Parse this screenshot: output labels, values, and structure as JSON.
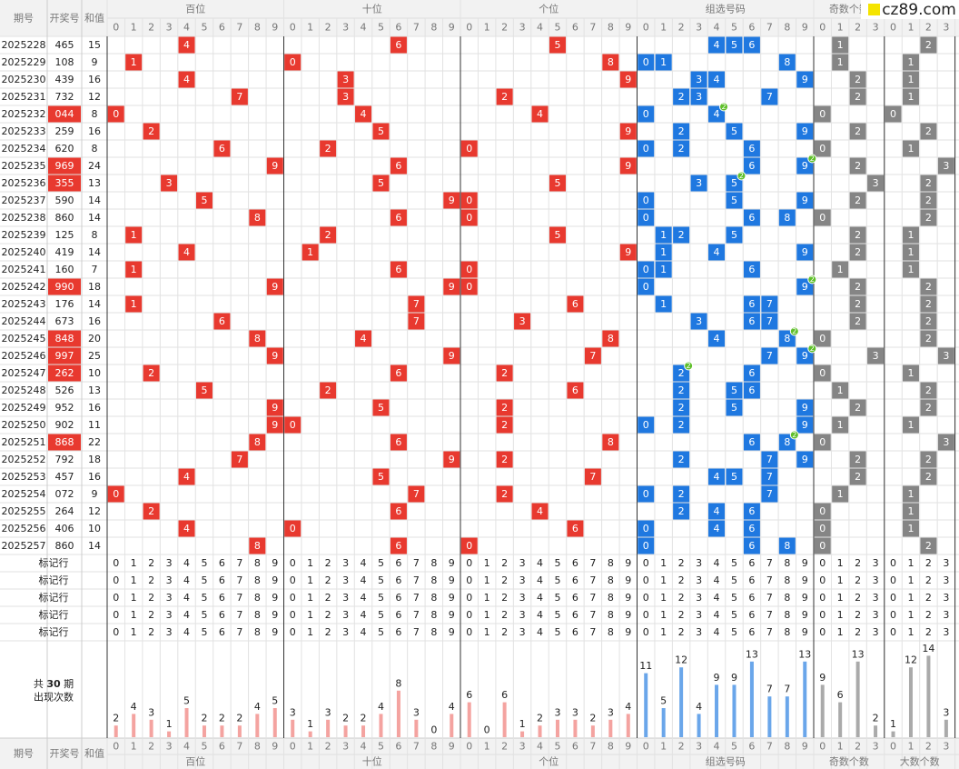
{
  "logo": "cz89.com",
  "headers": {
    "issue": "期号",
    "number": "开奖号",
    "sum": "和值"
  },
  "groups": [
    {
      "name": "百位",
      "color": "#e8392f",
      "bar_color": "#f4a3a0",
      "columns": [
        0,
        1,
        2,
        3,
        4,
        5,
        6,
        7,
        8,
        9
      ],
      "counts": [
        2,
        4,
        3,
        1,
        5,
        2,
        2,
        2,
        4,
        5
      ]
    },
    {
      "name": "十位",
      "color": "#e8392f",
      "bar_color": "#f4a3a0",
      "columns": [
        0,
        1,
        2,
        3,
        4,
        5,
        6,
        7,
        8,
        9
      ],
      "counts": [
        3,
        1,
        3,
        2,
        2,
        4,
        8,
        3,
        0,
        4
      ]
    },
    {
      "name": "个位",
      "color": "#e8392f",
      "bar_color": "#f4a3a0",
      "columns": [
        0,
        1,
        2,
        3,
        4,
        5,
        6,
        7,
        8,
        9
      ],
      "counts": [
        6,
        0,
        6,
        1,
        2,
        3,
        3,
        2,
        3,
        4
      ]
    },
    {
      "name": "组选号码",
      "color": "#1f78e0",
      "bar_color": "#6aa6ea",
      "columns": [
        0,
        1,
        2,
        3,
        4,
        5,
        6,
        7,
        8,
        9
      ],
      "counts": [
        11,
        5,
        12,
        4,
        9,
        9,
        13,
        7,
        7,
        13
      ]
    },
    {
      "name": "奇数个数",
      "color": "#858585",
      "bar_color": "#aaaaaa",
      "columns": [
        0,
        1,
        2,
        3
      ],
      "counts": [
        9,
        6,
        13,
        2
      ]
    },
    {
      "name": "大数个数",
      "color": "#858585",
      "bar_color": "#aaaaaa",
      "columns": [
        0,
        1,
        2,
        3
      ],
      "counts": [
        1,
        12,
        14,
        3
      ]
    }
  ],
  "draws": [
    {
      "issue": "2025228",
      "number": "465",
      "sum": 15,
      "digits": [
        4,
        6,
        5
      ],
      "odd": 1,
      "big": 2
    },
    {
      "issue": "2025229",
      "number": "108",
      "sum": 9,
      "digits": [
        1,
        0,
        8
      ],
      "odd": 1,
      "big": 1
    },
    {
      "issue": "2025230",
      "number": "439",
      "sum": 16,
      "digits": [
        4,
        3,
        9
      ],
      "odd": 2,
      "big": 1
    },
    {
      "issue": "2025231",
      "number": "732",
      "sum": 12,
      "digits": [
        7,
        3,
        2
      ],
      "odd": 2,
      "big": 1
    },
    {
      "issue": "2025232",
      "number": "044",
      "sum": 8,
      "digits": [
        0,
        4,
        4
      ],
      "odd": 0,
      "big": 0,
      "double": 2
    },
    {
      "issue": "2025233",
      "number": "259",
      "sum": 16,
      "digits": [
        2,
        5,
        9
      ],
      "odd": 2,
      "big": 2
    },
    {
      "issue": "2025234",
      "number": "620",
      "sum": 8,
      "digits": [
        6,
        2,
        0
      ],
      "odd": 0,
      "big": 1
    },
    {
      "issue": "2025235",
      "number": "969",
      "sum": 24,
      "digits": [
        9,
        6,
        9
      ],
      "odd": 2,
      "big": 3,
      "double": 2
    },
    {
      "issue": "2025236",
      "number": "355",
      "sum": 13,
      "digits": [
        3,
        5,
        5
      ],
      "odd": 3,
      "big": 2,
      "double": 2
    },
    {
      "issue": "2025237",
      "number": "590",
      "sum": 14,
      "digits": [
        5,
        9,
        0
      ],
      "odd": 2,
      "big": 2
    },
    {
      "issue": "2025238",
      "number": "860",
      "sum": 14,
      "digits": [
        8,
        6,
        0
      ],
      "odd": 0,
      "big": 2
    },
    {
      "issue": "2025239",
      "number": "125",
      "sum": 8,
      "digits": [
        1,
        2,
        5
      ],
      "odd": 2,
      "big": 1
    },
    {
      "issue": "2025240",
      "number": "419",
      "sum": 14,
      "digits": [
        4,
        1,
        9
      ],
      "odd": 2,
      "big": 1
    },
    {
      "issue": "2025241",
      "number": "160",
      "sum": 7,
      "digits": [
        1,
        6,
        0
      ],
      "odd": 1,
      "big": 1
    },
    {
      "issue": "2025242",
      "number": "990",
      "sum": 18,
      "digits": [
        9,
        9,
        0
      ],
      "odd": 2,
      "big": 2,
      "double": 2
    },
    {
      "issue": "2025243",
      "number": "176",
      "sum": 14,
      "digits": [
        1,
        7,
        6
      ],
      "odd": 2,
      "big": 2
    },
    {
      "issue": "2025244",
      "number": "673",
      "sum": 16,
      "digits": [
        6,
        7,
        3
      ],
      "odd": 2,
      "big": 2
    },
    {
      "issue": "2025245",
      "number": "848",
      "sum": 20,
      "digits": [
        8,
        4,
        8
      ],
      "odd": 0,
      "big": 2,
      "double": 2
    },
    {
      "issue": "2025246",
      "number": "997",
      "sum": 25,
      "digits": [
        9,
        9,
        7
      ],
      "odd": 3,
      "big": 3,
      "double": 2
    },
    {
      "issue": "2025247",
      "number": "262",
      "sum": 10,
      "digits": [
        2,
        6,
        2
      ],
      "odd": 0,
      "big": 1,
      "double": 2
    },
    {
      "issue": "2025248",
      "number": "526",
      "sum": 13,
      "digits": [
        5,
        2,
        6
      ],
      "odd": 1,
      "big": 2
    },
    {
      "issue": "2025249",
      "number": "952",
      "sum": 16,
      "digits": [
        9,
        5,
        2
      ],
      "odd": 2,
      "big": 2
    },
    {
      "issue": "2025250",
      "number": "902",
      "sum": 11,
      "digits": [
        9,
        0,
        2
      ],
      "odd": 1,
      "big": 1
    },
    {
      "issue": "2025251",
      "number": "868",
      "sum": 22,
      "digits": [
        8,
        6,
        8
      ],
      "odd": 0,
      "big": 3,
      "double": 2
    },
    {
      "issue": "2025252",
      "number": "792",
      "sum": 18,
      "digits": [
        7,
        9,
        2
      ],
      "odd": 2,
      "big": 2
    },
    {
      "issue": "2025253",
      "number": "457",
      "sum": 16,
      "digits": [
        4,
        5,
        7
      ],
      "odd": 2,
      "big": 2
    },
    {
      "issue": "2025254",
      "number": "072",
      "sum": 9,
      "digits": [
        0,
        7,
        2
      ],
      "odd": 1,
      "big": 1
    },
    {
      "issue": "2025255",
      "number": "264",
      "sum": 12,
      "digits": [
        2,
        6,
        4
      ],
      "odd": 0,
      "big": 1
    },
    {
      "issue": "2025256",
      "number": "406",
      "sum": 10,
      "digits": [
        4,
        0,
        6
      ],
      "odd": 0,
      "big": 1
    },
    {
      "issue": "2025257",
      "number": "860",
      "sum": 14,
      "digits": [
        8,
        6,
        0
      ],
      "odd": 0,
      "big": 2
    }
  ],
  "mark_row_label": "标记行",
  "summary": {
    "prefix": "共",
    "total": 30,
    "suffix": "期",
    "caption": "出现次数"
  }
}
